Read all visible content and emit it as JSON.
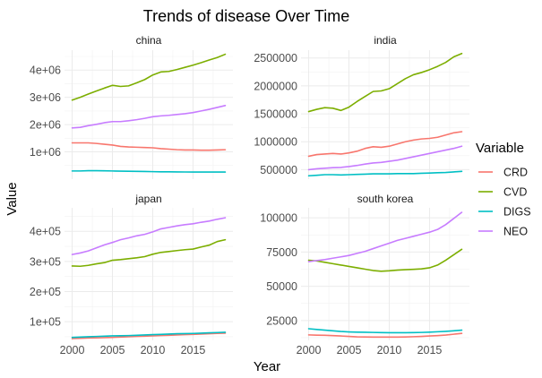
{
  "chart_data": {
    "type": "line",
    "title": "Trends of disease Over Time",
    "xlabel": "Year",
    "ylabel": "Value",
    "legend": {
      "title": "Variable",
      "placement": "right",
      "entries": [
        {
          "name": "CRD",
          "color": "#F8766D"
        },
        {
          "name": "CVD",
          "color": "#7CAE00"
        },
        {
          "name": "DIGS",
          "color": "#00BFC4"
        },
        {
          "name": "NEO",
          "color": "#C77CFF"
        }
      ]
    },
    "x": [
      2000,
      2001,
      2002,
      2003,
      2004,
      2005,
      2006,
      2007,
      2008,
      2009,
      2010,
      2011,
      2012,
      2013,
      2014,
      2015,
      2016,
      2017,
      2018,
      2019
    ],
    "xlim": [
      1999.05,
      2019.95
    ],
    "x_ticks": [
      2000,
      2005,
      2010,
      2015
    ],
    "x_tick_labels": [
      "2000",
      "2005",
      "2010",
      "2015"
    ],
    "panels": [
      {
        "name": "china",
        "ylim": [
          0,
          4730000
        ],
        "y_ticks": [
          1000000,
          2000000,
          3000000,
          4000000
        ],
        "y_tick_labels": [
          "1e+06",
          "2e+06",
          "3e+06",
          "4e+06"
        ],
        "series": [
          {
            "name": "CRD",
            "values": [
              1330000,
              1330000,
              1330000,
              1310000,
              1280000,
              1250000,
              1200000,
              1180000,
              1170000,
              1160000,
              1150000,
              1120000,
              1100000,
              1080000,
              1070000,
              1070000,
              1060000,
              1060000,
              1070000,
              1080000
            ]
          },
          {
            "name": "CVD",
            "values": [
              2900000,
              3000000,
              3120000,
              3230000,
              3340000,
              3440000,
              3400000,
              3420000,
              3530000,
              3650000,
              3820000,
              3930000,
              3950000,
              4020000,
              4100000,
              4180000,
              4270000,
              4370000,
              4460000,
              4580000
            ]
          },
          {
            "name": "DIGS",
            "values": [
              300000,
              300000,
              310000,
              310000,
              305000,
              300000,
              295000,
              290000,
              285000,
              280000,
              275000,
              270000,
              268000,
              265000,
              263000,
              262000,
              260000,
              260000,
              260000,
              260000
            ]
          },
          {
            "name": "NEO",
            "values": [
              1880000,
              1900000,
              1960000,
              2010000,
              2070000,
              2110000,
              2110000,
              2140000,
              2180000,
              2230000,
              2290000,
              2320000,
              2340000,
              2370000,
              2400000,
              2440000,
              2500000,
              2560000,
              2630000,
              2700000
            ]
          }
        ]
      },
      {
        "name": "india",
        "ylim": [
          330000,
          2640000
        ],
        "y_ticks": [
          500000,
          1000000,
          1500000,
          2000000,
          2500000
        ],
        "y_tick_labels": [
          "500000",
          "1000000",
          "1500000",
          "2000000",
          "2500000"
        ],
        "series": [
          {
            "name": "CRD",
            "values": [
              740000,
              770000,
              780000,
              790000,
              780000,
              800000,
              830000,
              880000,
              910000,
              900000,
              920000,
              960000,
              1000000,
              1030000,
              1050000,
              1060000,
              1080000,
              1120000,
              1160000,
              1180000
            ]
          },
          {
            "name": "CVD",
            "values": [
              1540000,
              1580000,
              1610000,
              1600000,
              1560000,
              1620000,
              1720000,
              1810000,
              1900000,
              1910000,
              1950000,
              2040000,
              2130000,
              2200000,
              2240000,
              2290000,
              2350000,
              2420000,
              2520000,
              2580000
            ]
          },
          {
            "name": "DIGS",
            "values": [
              390000,
              400000,
              410000,
              410000,
              405000,
              410000,
              415000,
              420000,
              425000,
              425000,
              425000,
              430000,
              430000,
              430000,
              435000,
              440000,
              445000,
              450000,
              460000,
              470000
            ]
          },
          {
            "name": "NEO",
            "values": [
              500000,
              515000,
              525000,
              535000,
              540000,
              555000,
              575000,
              600000,
              620000,
              630000,
              650000,
              670000,
              700000,
              730000,
              760000,
              790000,
              820000,
              850000,
              880000,
              920000
            ]
          }
        ]
      },
      {
        "name": "japan",
        "ylim": [
          38000,
          478000
        ],
        "y_ticks": [
          100000,
          200000,
          300000,
          400000
        ],
        "y_tick_labels": [
          "1e+05",
          "2e+05",
          "3e+05",
          "4e+05"
        ],
        "series": [
          {
            "name": "CRD",
            "values": [
              44000,
              45000,
              46000,
              46500,
              47000,
              48000,
              49000,
              50000,
              51000,
              52000,
              53000,
              54000,
              55000,
              56000,
              57000,
              58000,
              59000,
              60000,
              61000,
              62000
            ]
          },
          {
            "name": "CVD",
            "values": [
              285000,
              284000,
              287000,
              292000,
              296000,
              304000,
              306000,
              309000,
              312000,
              316000,
              324000,
              330000,
              333000,
              336000,
              339000,
              341000,
              348000,
              354000,
              366000,
              372000
            ]
          },
          {
            "name": "DIGS",
            "values": [
              48000,
              49000,
              50000,
              51000,
              52000,
              53000,
              53500,
              54000,
              55000,
              56000,
              57000,
              58000,
              59000,
              60000,
              60500,
              61000,
              62000,
              63000,
              64000,
              65000
            ]
          },
          {
            "name": "NEO",
            "values": [
              323000,
              328000,
              335000,
              345000,
              355000,
              363000,
              372000,
              378000,
              385000,
              390000,
              398000,
              408000,
              413000,
              418000,
              422000,
              425000,
              430000,
              434000,
              440000,
              445000
            ]
          }
        ]
      },
      {
        "name": "south korea",
        "ylim": [
          10500,
          107300
        ],
        "y_ticks": [
          25000,
          50000,
          75000,
          100000
        ],
        "y_tick_labels": [
          "25000",
          "50000",
          "75000",
          "100000"
        ],
        "series": [
          {
            "name": "CRD",
            "values": [
              14500,
              14300,
              14200,
              14000,
              13700,
              13400,
              13100,
              13000,
              12900,
              12900,
              12900,
              12900,
              13000,
              13200,
              13400,
              13700,
              14000,
              14400,
              15000,
              15600
            ]
          },
          {
            "name": "CVD",
            "values": [
              69000,
              68500,
              67500,
              66500,
              65500,
              64500,
              63500,
              62500,
              61500,
              61000,
              61300,
              61800,
              62100,
              62400,
              62700,
              63500,
              65500,
              69000,
              73000,
              77000
            ]
          },
          {
            "name": "DIGS",
            "values": [
              19000,
              18500,
              18000,
              17500,
              17000,
              16700,
              16500,
              16400,
              16300,
              16200,
              16100,
              16100,
              16100,
              16200,
              16300,
              16500,
              16800,
              17100,
              17500,
              18000
            ]
          },
          {
            "name": "NEO",
            "values": [
              68000,
              68800,
              69500,
              70500,
              71500,
              72500,
              74000,
              75500,
              77500,
              79500,
              81500,
              83500,
              85000,
              86500,
              88000,
              89500,
              91500,
              95000,
              99500,
              104000
            ]
          }
        ]
      }
    ]
  }
}
